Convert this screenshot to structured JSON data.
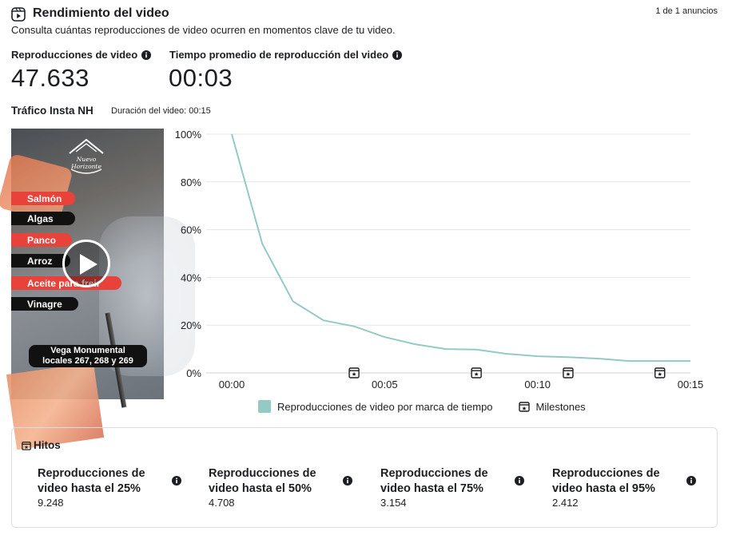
{
  "header": {
    "title": "Rendimiento del video",
    "ad_counter": "1 de 1 anuncios",
    "subtitle": "Consulta cuántas reproducciones de video ocurren en momentos clave de tu video.",
    "icon": "video-icon"
  },
  "metrics": [
    {
      "label": "Reproducciones de video",
      "value": "47.633",
      "icon": "info-icon"
    },
    {
      "label": "Tiempo promedio de reproducción del video",
      "value": "00:03",
      "icon": "info-icon"
    }
  ],
  "video": {
    "title": "Tráfico Insta NH",
    "duration": "Duración del video: 00:15",
    "thumbnail": {
      "logo_text": [
        "Nuevo",
        "Horizonte"
      ],
      "tags": [
        {
          "label": "Salmón",
          "color": "red"
        },
        {
          "label": "Algas",
          "color": "black"
        },
        {
          "label": "Panco",
          "color": "red"
        },
        {
          "label": "Arroz",
          "color": "black"
        },
        {
          "label": "Aceite para freir",
          "color": "red"
        },
        {
          "label": "Vinagre",
          "color": "black"
        }
      ],
      "location_line1": "Vega Monumental",
      "location_line2": "locales 267, 268 y 269",
      "play_icon": "play-icon"
    }
  },
  "chart_data": {
    "type": "line",
    "x": [
      0,
      1,
      2,
      3,
      4,
      5,
      6,
      7,
      8,
      9,
      10,
      11,
      12,
      13,
      14,
      15
    ],
    "series": [
      {
        "name": "Reproducciones de video por marca de tiempo",
        "values": [
          100,
          54,
          30,
          22,
          19.5,
          15,
          12,
          10,
          9.8,
          8,
          7,
          6.6,
          6,
          5,
          5,
          5
        ],
        "color": "#93cbc4"
      }
    ],
    "x_tick_labels": [
      "00:00",
      "00:05",
      "00:10",
      "00:15"
    ],
    "x_ticks": [
      0,
      5,
      10,
      15
    ],
    "y_tick_labels": [
      "0%",
      "20%",
      "40%",
      "60%",
      "80%",
      "100%"
    ],
    "y_ticks": [
      0,
      20,
      40,
      60,
      80,
      100
    ],
    "ylim": [
      0,
      100
    ],
    "xlim": [
      0,
      15
    ],
    "milestones_x": [
      4,
      8,
      11,
      14
    ],
    "grid": true,
    "legend": {
      "series_label": "Reproducciones de video por marca de tiempo",
      "milestones_label": "Milestones",
      "placement": "bottom"
    }
  },
  "hitos": {
    "title": "Hitos",
    "items": [
      {
        "label": "Reproducciones de video hasta el 25%",
        "value": "9.248"
      },
      {
        "label": "Reproducciones de video hasta el 50%",
        "value": "4.708"
      },
      {
        "label": "Reproducciones de video hasta el 75%",
        "value": "3.154"
      },
      {
        "label": "Reproducciones de video hasta el 95%",
        "value": "2.412"
      }
    ]
  }
}
